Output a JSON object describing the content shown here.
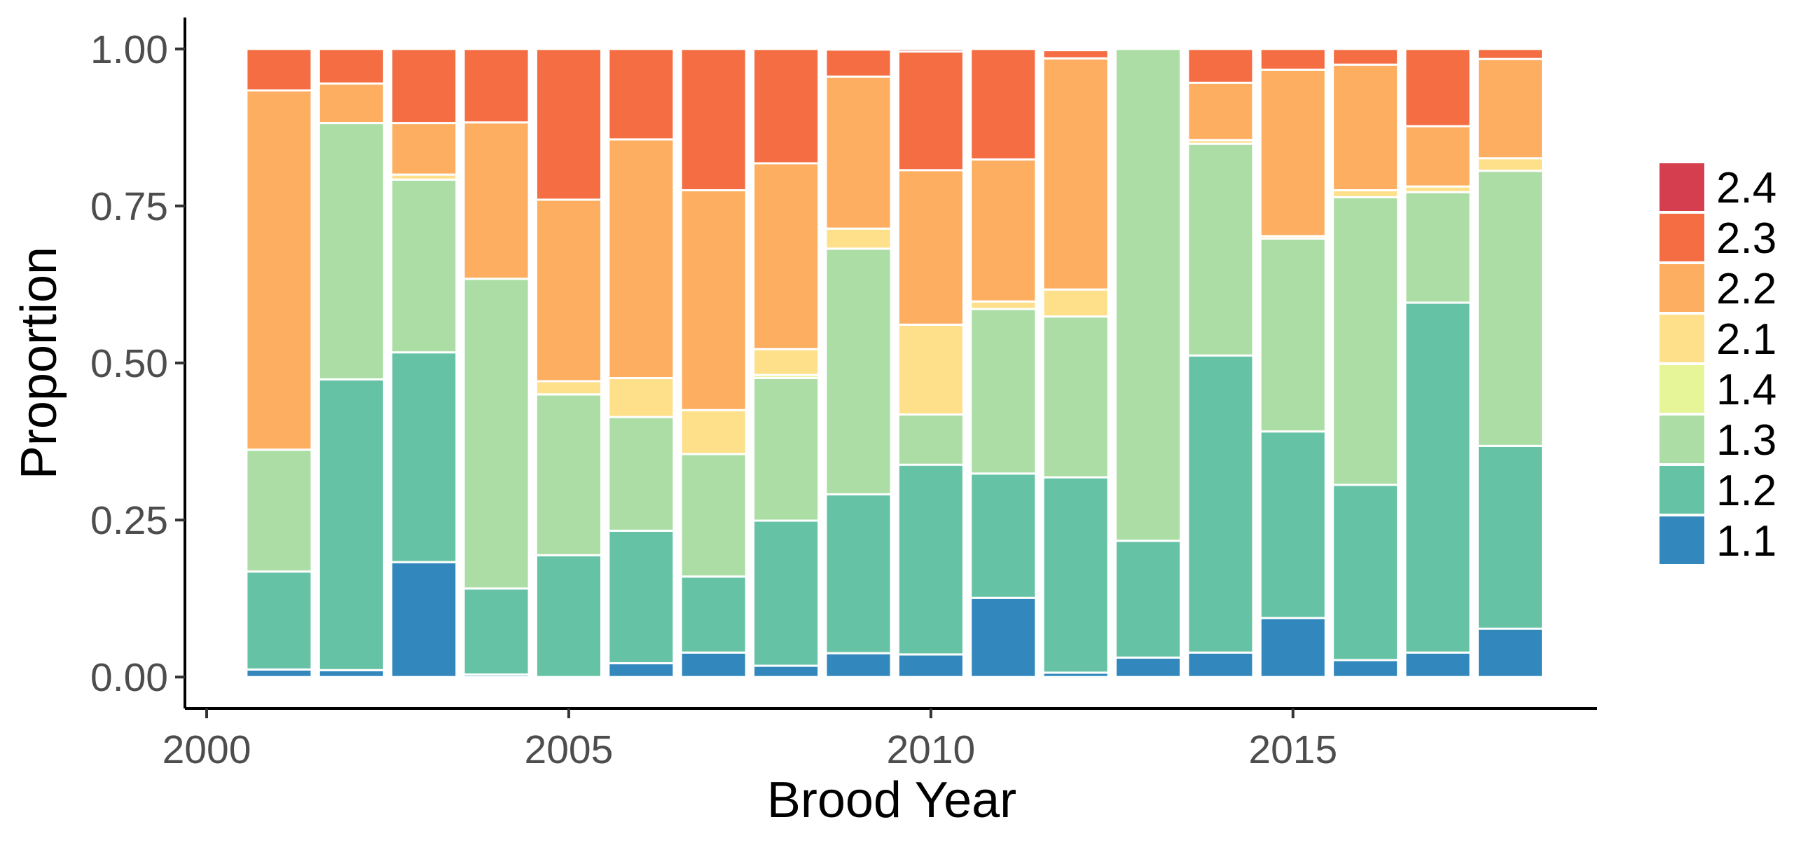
{
  "chart_data": {
    "type": "bar",
    "stacked": true,
    "normalized": true,
    "xlabel": "Brood Year",
    "ylabel": "Proportion",
    "x_ticks": [
      "2000",
      "2005",
      "2010",
      "2015"
    ],
    "y_ticks": [
      "0.00",
      "0.25",
      "0.50",
      "0.75",
      "1.00"
    ],
    "xlim": [
      1999.7,
      2019.2
    ],
    "ylim": [
      -0.05,
      1.05
    ],
    "grid": false,
    "legend_position": "right",
    "legend_order": [
      "2.4",
      "2.3",
      "2.2",
      "2.1",
      "1.4",
      "1.3",
      "1.2",
      "1.1"
    ],
    "x": [
      2001,
      2002,
      2003,
      2004,
      2005,
      2006,
      2007,
      2008,
      2009,
      2010,
      2011,
      2012,
      2013,
      2014,
      2015,
      2016,
      2017,
      2018
    ],
    "series": [
      {
        "name": "1.1",
        "color": "#3288bd",
        "values": [
          0.012,
          0.011,
          0.183,
          0.004,
          0.0,
          0.022,
          0.039,
          0.018,
          0.038,
          0.036,
          0.126,
          0.007,
          0.031,
          0.039,
          0.094,
          0.027,
          0.039,
          0.077
        ]
      },
      {
        "name": "1.2",
        "color": "#66c2a5",
        "values": [
          0.156,
          0.463,
          0.334,
          0.137,
          0.194,
          0.211,
          0.121,
          0.231,
          0.253,
          0.302,
          0.198,
          0.311,
          0.186,
          0.473,
          0.297,
          0.279,
          0.557,
          0.291
        ]
      },
      {
        "name": "1.3",
        "color": "#abdda4",
        "values": [
          0.194,
          0.408,
          0.275,
          0.493,
          0.256,
          0.181,
          0.195,
          0.227,
          0.391,
          0.08,
          0.262,
          0.256,
          0.783,
          0.337,
          0.307,
          0.458,
          0.176,
          0.438
        ]
      },
      {
        "name": "1.4",
        "color": "#e6f598",
        "values": [
          0.0,
          0.0,
          0.0,
          0.0,
          0.0,
          0.0,
          0.0,
          0.005,
          0.0,
          0.0,
          0.0,
          0.0,
          0.0,
          0.0,
          0.0,
          0.0,
          0.0,
          0.0
        ]
      },
      {
        "name": "2.1",
        "color": "#fee08b",
        "values": [
          0.0,
          0.0,
          0.008,
          0.0,
          0.021,
          0.062,
          0.07,
          0.041,
          0.032,
          0.143,
          0.012,
          0.043,
          0.0,
          0.006,
          0.004,
          0.011,
          0.009,
          0.02
        ]
      },
      {
        "name": "2.2",
        "color": "#fdae61",
        "values": [
          0.572,
          0.063,
          0.082,
          0.249,
          0.289,
          0.38,
          0.35,
          0.296,
          0.242,
          0.246,
          0.226,
          0.368,
          0.0,
          0.091,
          0.265,
          0.2,
          0.096,
          0.158
        ]
      },
      {
        "name": "2.3",
        "color": "#f46d43",
        "values": [
          0.066,
          0.055,
          0.118,
          0.117,
          0.24,
          0.144,
          0.225,
          0.182,
          0.043,
          0.189,
          0.176,
          0.013,
          0.0,
          0.054,
          0.033,
          0.025,
          0.123,
          0.016
        ]
      },
      {
        "name": "2.4",
        "color": "#d53e4f",
        "values": [
          0.0,
          0.0,
          0.0,
          0.0,
          0.0,
          0.0,
          0.0,
          0.0,
          0.0,
          0.004,
          0.0,
          0.0,
          0.0,
          0.0,
          0.0,
          0.0,
          0.0,
          0.0
        ]
      }
    ]
  }
}
